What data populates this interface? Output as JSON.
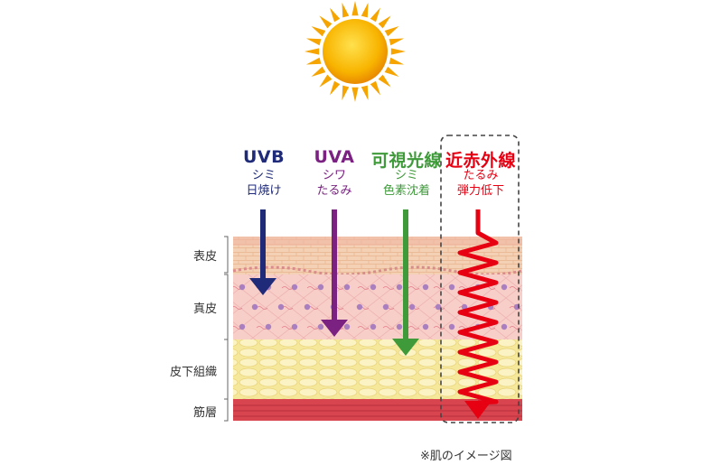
{
  "rays": [
    {
      "name": "UVB",
      "effects": [
        "シミ",
        "日焼け"
      ],
      "color": "#1f2a78"
    },
    {
      "name": "UVA",
      "effects": [
        "シワ",
        "たるみ"
      ],
      "color": "#7a2182"
    },
    {
      "name": "可視光線",
      "effects": [
        "シミ",
        "色素沈着"
      ],
      "color": "#3f9a3a"
    },
    {
      "name": "近赤外線",
      "effects": [
        "たるみ",
        "弾力低下"
      ],
      "color": "#e60012"
    }
  ],
  "layers": [
    "表皮",
    "真皮",
    "皮下組織",
    "筋層"
  ],
  "note": "※肌のイメージ図",
  "colors": {
    "sun": "#f7b500",
    "epidermis": "#f3c9a6",
    "dermis": "#f6c7c4",
    "subcutaneous": "#f8eca0",
    "muscle": "#d8434f"
  }
}
